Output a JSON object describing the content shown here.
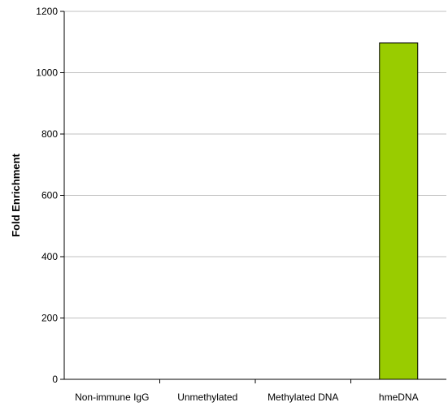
{
  "chart_data": {
    "type": "bar",
    "categories": [
      "Non-immune IgG",
      "Unmethylated",
      "Methylated DNA",
      "hmeDNA"
    ],
    "values": [
      0,
      0,
      0,
      1097
    ],
    "title": "",
    "xlabel": "",
    "ylabel": "Fold Enrichment",
    "ylim": [
      0,
      1200
    ],
    "yticks": [
      0,
      200,
      400,
      600,
      800,
      1000,
      1200
    ],
    "grid": true,
    "legend": "none",
    "colors": {
      "bar_fill": "#99cc00",
      "bar_stroke": "#000000",
      "grid": "#c0c0c0",
      "axis": "#000000"
    }
  }
}
